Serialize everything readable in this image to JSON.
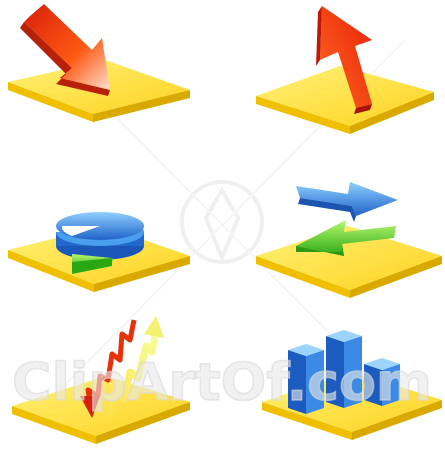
{
  "watermark": {
    "text": "ClipArtOf.com"
  },
  "colors": {
    "platform_top": "#ffe65a",
    "platform_side": "#f0c400",
    "platform_edge": "#d8a800",
    "arrow_red": "#e8300a",
    "arrow_orange": "#ff8a00",
    "blue": "#2a78d8",
    "blue_light": "#6fb8ff",
    "green": "#3cbf20",
    "green_light": "#a8f060",
    "watermark": "#e6e6e6"
  },
  "icons": [
    "down-right-arrow-icon",
    "up-arrow-icon",
    "pie-chart-icon",
    "exchange-arrows-icon",
    "rising-line-chart-icon",
    "bar-chart-icon"
  ]
}
